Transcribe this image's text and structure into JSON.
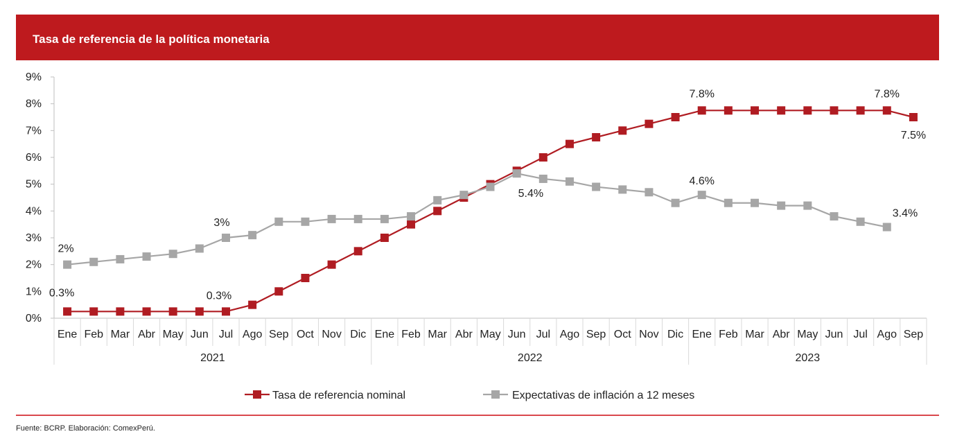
{
  "chart_data": {
    "type": "line",
    "title": "Tasa de referencia de la política monetaria",
    "xlabel": "",
    "ylabel": "",
    "ylim": [
      0,
      9
    ],
    "yticks": [
      0,
      1,
      2,
      3,
      4,
      5,
      6,
      7,
      8,
      9
    ],
    "ytick_labels": [
      "0%",
      "1%",
      "2%",
      "3%",
      "4%",
      "5%",
      "6%",
      "7%",
      "8%",
      "9%"
    ],
    "grid": false,
    "legend_position": "bottom",
    "categories": [
      "Ene",
      "Feb",
      "Mar",
      "Abr",
      "May",
      "Jun",
      "Jul",
      "Ago",
      "Sep",
      "Oct",
      "Nov",
      "Dic",
      "Ene",
      "Feb",
      "Mar",
      "Abr",
      "May",
      "Jun",
      "Jul",
      "Ago",
      "Sep",
      "Oct",
      "Nov",
      "Dic",
      "Ene",
      "Feb",
      "Mar",
      "Abr",
      "May",
      "Jun",
      "Jul",
      "Ago",
      "Sep"
    ],
    "year_groups": [
      {
        "label": "2021",
        "count": 12
      },
      {
        "label": "2022",
        "count": 12
      },
      {
        "label": "2023",
        "count": 9
      }
    ],
    "series": [
      {
        "name": "Tasa de referencia nominal",
        "color": "#b01c22",
        "values": [
          0.25,
          0.25,
          0.25,
          0.25,
          0.25,
          0.25,
          0.25,
          0.5,
          1.0,
          1.5,
          2.0,
          2.5,
          3.0,
          3.5,
          4.0,
          4.5,
          5.0,
          5.5,
          6.0,
          6.5,
          6.75,
          7.0,
          7.25,
          7.5,
          7.75,
          7.75,
          7.75,
          7.75,
          7.75,
          7.75,
          7.75,
          7.75,
          7.5
        ]
      },
      {
        "name": "Expectativas de inflación a 12 meses",
        "color": "#a6a6a6",
        "values": [
          2.0,
          2.1,
          2.2,
          2.3,
          2.4,
          2.6,
          3.0,
          3.1,
          3.6,
          3.6,
          3.7,
          3.7,
          3.7,
          3.8,
          4.4,
          4.6,
          4.9,
          5.4,
          5.2,
          5.1,
          4.9,
          4.8,
          4.7,
          4.3,
          4.6,
          4.3,
          4.3,
          4.2,
          4.2,
          3.8,
          3.6,
          3.4,
          null
        ]
      }
    ],
    "annotations": [
      {
        "series": 0,
        "index": 0,
        "text": "0.3%",
        "pos": "above"
      },
      {
        "series": 0,
        "index": 6,
        "text": "0.3%",
        "pos": "above"
      },
      {
        "series": 0,
        "index": 24,
        "text": "7.8%",
        "pos": "above"
      },
      {
        "series": 0,
        "index": 31,
        "text": "7.8%",
        "pos": "above"
      },
      {
        "series": 0,
        "index": 32,
        "text": "7.5%",
        "pos": "below"
      },
      {
        "series": 1,
        "index": 0,
        "text": "2%",
        "pos": "above"
      },
      {
        "series": 1,
        "index": 6,
        "text": "3%",
        "pos": "above"
      },
      {
        "series": 1,
        "index": 17,
        "text": "5.4%",
        "pos": "below-right"
      },
      {
        "series": 1,
        "index": 24,
        "text": "4.6%",
        "pos": "above"
      },
      {
        "series": 1,
        "index": 31,
        "text": "3.4%",
        "pos": "above-right"
      }
    ]
  },
  "footer": {
    "source": "Fuente: BCRP. Elaboración: ComexPerú."
  }
}
